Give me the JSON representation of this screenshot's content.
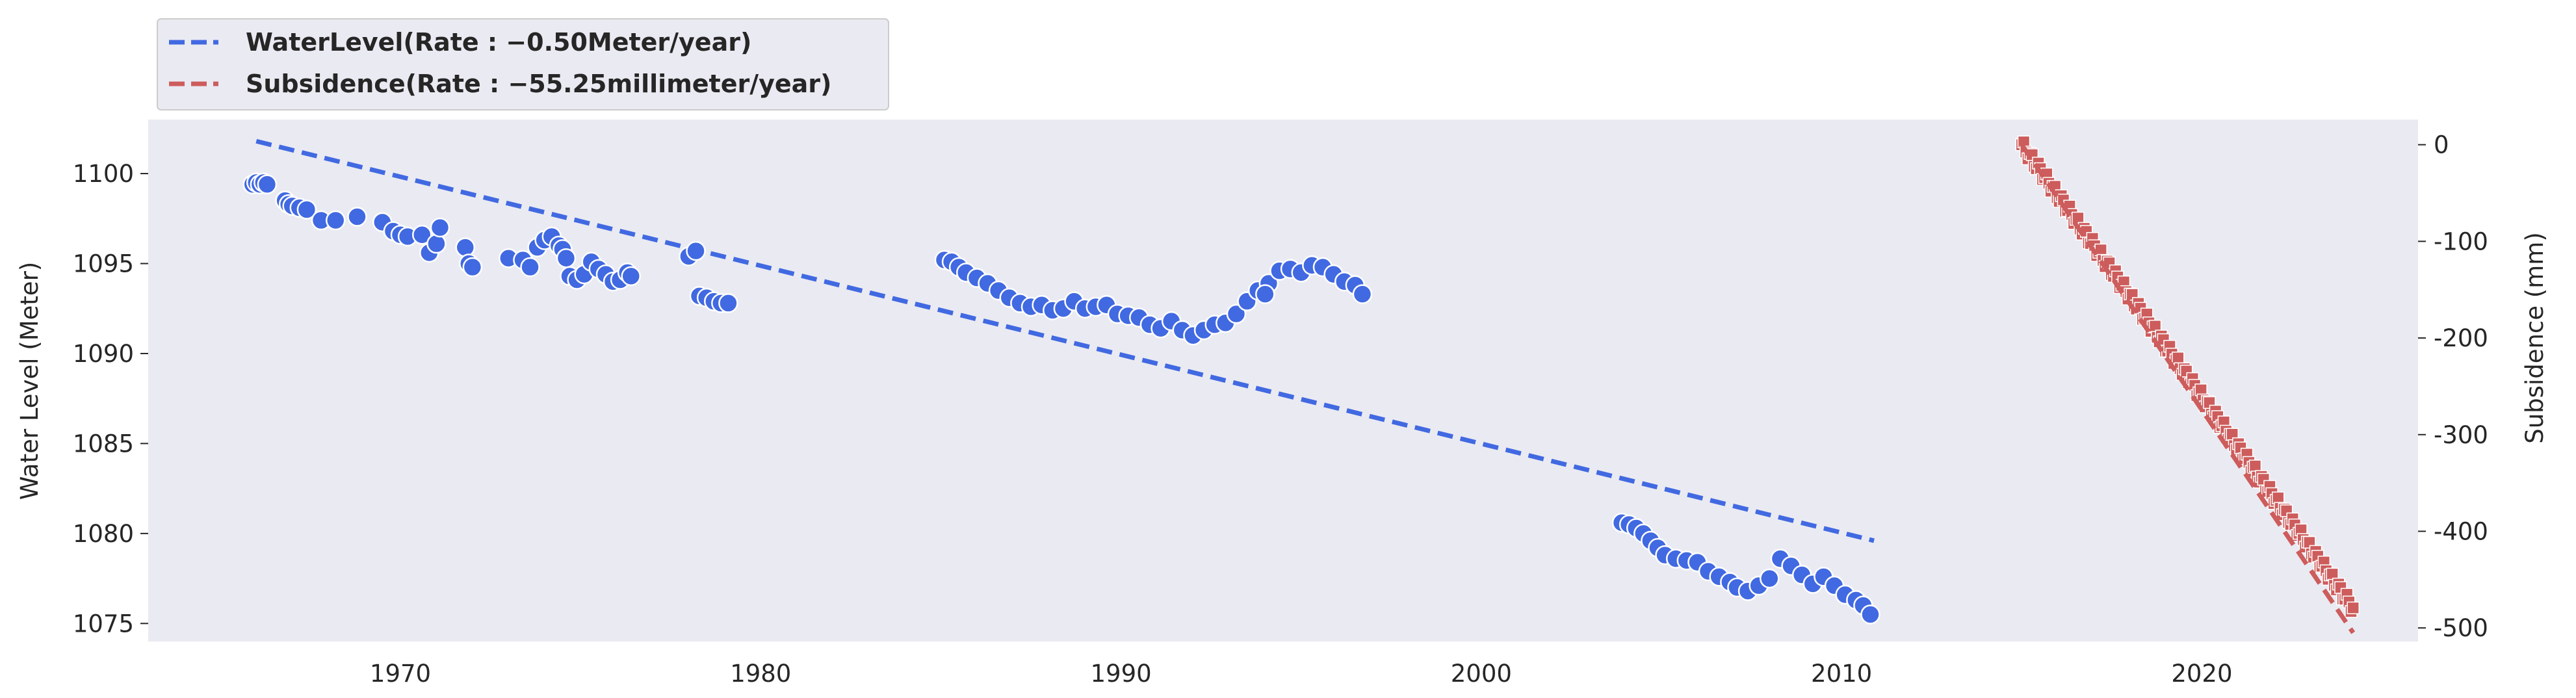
{
  "chart_data": {
    "type": "scatter",
    "title": "",
    "xlabel": "",
    "ylabel": "Water Level (Meter)",
    "y2label": "Subsidence (mm)",
    "xlim": [
      1963,
      2026
    ],
    "ylim": [
      1074,
      1103
    ],
    "y2lim": [
      -514,
      26
    ],
    "xticks": [
      1970,
      1980,
      1990,
      2000,
      2010,
      2020
    ],
    "yticks": [
      1075,
      1080,
      1085,
      1090,
      1095,
      1100
    ],
    "y2ticks": [
      -500,
      -400,
      -300,
      -200,
      -100,
      0
    ],
    "grid": false,
    "legend_position": "top-left, outside above plot",
    "background": "#eaeaf2",
    "series": [
      {
        "name": "WaterLevel(Rate : −0.50Meter/year)",
        "axis": "left",
        "color": "#4169e1",
        "marker": "circle",
        "points": [
          [
            1965.9,
            1099.4
          ],
          [
            1966.0,
            1099.5
          ],
          [
            1966.1,
            1099.4
          ],
          [
            1966.2,
            1099.5
          ],
          [
            1966.3,
            1099.4
          ],
          [
            1966.8,
            1098.5
          ],
          [
            1966.9,
            1098.3
          ],
          [
            1967.0,
            1098.2
          ],
          [
            1967.2,
            1098.1
          ],
          [
            1967.4,
            1098.0
          ],
          [
            1967.8,
            1097.4
          ],
          [
            1968.2,
            1097.4
          ],
          [
            1968.8,
            1097.6
          ],
          [
            1969.5,
            1097.3
          ],
          [
            1969.8,
            1096.8
          ],
          [
            1970.0,
            1096.6
          ],
          [
            1970.2,
            1096.5
          ],
          [
            1970.6,
            1096.6
          ],
          [
            1970.8,
            1095.6
          ],
          [
            1971.0,
            1096.1
          ],
          [
            1971.1,
            1097.0
          ],
          [
            1971.8,
            1095.9
          ],
          [
            1971.9,
            1095.0
          ],
          [
            1972.0,
            1094.8
          ],
          [
            1973.0,
            1095.3
          ],
          [
            1973.4,
            1095.2
          ],
          [
            1973.6,
            1094.8
          ],
          [
            1973.8,
            1095.9
          ],
          [
            1974.0,
            1096.3
          ],
          [
            1974.2,
            1096.5
          ],
          [
            1974.4,
            1096.0
          ],
          [
            1974.5,
            1095.8
          ],
          [
            1974.6,
            1095.3
          ],
          [
            1974.7,
            1094.3
          ],
          [
            1974.9,
            1094.1
          ],
          [
            1975.1,
            1094.4
          ],
          [
            1975.3,
            1095.1
          ],
          [
            1975.5,
            1094.7
          ],
          [
            1975.7,
            1094.4
          ],
          [
            1975.9,
            1094.0
          ],
          [
            1976.1,
            1094.1
          ],
          [
            1976.3,
            1094.5
          ],
          [
            1976.4,
            1094.3
          ],
          [
            1978.0,
            1095.4
          ],
          [
            1978.2,
            1095.7
          ],
          [
            1978.3,
            1093.2
          ],
          [
            1978.5,
            1093.1
          ],
          [
            1978.7,
            1092.9
          ],
          [
            1978.9,
            1092.8
          ],
          [
            1979.1,
            1092.8
          ],
          [
            1985.1,
            1095.2
          ],
          [
            1985.3,
            1095.1
          ],
          [
            1985.5,
            1094.8
          ],
          [
            1985.7,
            1094.5
          ],
          [
            1986.0,
            1094.2
          ],
          [
            1986.3,
            1093.9
          ],
          [
            1986.6,
            1093.5
          ],
          [
            1986.9,
            1093.1
          ],
          [
            1987.2,
            1092.8
          ],
          [
            1987.5,
            1092.6
          ],
          [
            1987.8,
            1092.7
          ],
          [
            1988.1,
            1092.4
          ],
          [
            1988.4,
            1092.5
          ],
          [
            1988.7,
            1092.9
          ],
          [
            1989.0,
            1092.5
          ],
          [
            1989.3,
            1092.6
          ],
          [
            1989.6,
            1092.7
          ],
          [
            1989.9,
            1092.2
          ],
          [
            1990.2,
            1092.1
          ],
          [
            1990.5,
            1092.0
          ],
          [
            1990.8,
            1091.6
          ],
          [
            1991.1,
            1091.4
          ],
          [
            1991.4,
            1091.8
          ],
          [
            1991.7,
            1091.3
          ],
          [
            1992.0,
            1091.0
          ],
          [
            1992.3,
            1091.3
          ],
          [
            1992.6,
            1091.6
          ],
          [
            1992.9,
            1091.7
          ],
          [
            1993.2,
            1092.2
          ],
          [
            1993.5,
            1092.9
          ],
          [
            1993.8,
            1093.5
          ],
          [
            1994.1,
            1093.9
          ],
          [
            1994.4,
            1094.6
          ],
          [
            1994.7,
            1094.7
          ],
          [
            1995.0,
            1094.5
          ],
          [
            1995.3,
            1094.9
          ],
          [
            1995.6,
            1094.8
          ],
          [
            1995.9,
            1094.4
          ],
          [
            1996.2,
            1094.0
          ],
          [
            1996.5,
            1093.8
          ],
          [
            1996.7,
            1093.3
          ],
          [
            1994.0,
            1093.3
          ],
          [
            2003.9,
            1080.6
          ],
          [
            2004.1,
            1080.5
          ],
          [
            2004.3,
            1080.3
          ],
          [
            2004.5,
            1080.0
          ],
          [
            2004.7,
            1079.6
          ],
          [
            2004.9,
            1079.2
          ],
          [
            2005.1,
            1078.8
          ],
          [
            2005.4,
            1078.6
          ],
          [
            2005.7,
            1078.5
          ],
          [
            2006.0,
            1078.4
          ],
          [
            2006.3,
            1077.9
          ],
          [
            2006.6,
            1077.6
          ],
          [
            2006.9,
            1077.3
          ],
          [
            2007.1,
            1077.0
          ],
          [
            2007.4,
            1076.8
          ],
          [
            2007.7,
            1077.1
          ],
          [
            2008.0,
            1077.5
          ],
          [
            2008.3,
            1078.6
          ],
          [
            2008.6,
            1078.2
          ],
          [
            2008.9,
            1077.7
          ],
          [
            2009.2,
            1077.2
          ],
          [
            2009.5,
            1077.6
          ],
          [
            2009.8,
            1077.1
          ],
          [
            2010.1,
            1076.6
          ],
          [
            2010.4,
            1076.3
          ],
          [
            2010.6,
            1076.0
          ],
          [
            2010.8,
            1075.5
          ]
        ]
      },
      {
        "name": "Subsidence(Rate : −55.25millimeter/year)",
        "axis": "right",
        "color": "#cd5c5c",
        "marker": "square",
        "points_range": {
          "x_start": 2015.0,
          "x_end": 2024.2,
          "y_start": 0,
          "y_end": -480,
          "count": 160
        }
      }
    ],
    "trend_lines": [
      {
        "series": "WaterLevel",
        "axis": "left",
        "color": "#4169e1",
        "style": "dashed",
        "x": [
          1966.0,
          2010.9
        ],
        "y": [
          1101.8,
          1079.6
        ]
      },
      {
        "series": "Subsidence",
        "axis": "right",
        "color": "#cd5c5c",
        "style": "dashed",
        "x": [
          2015.0,
          2024.2
        ],
        "y": [
          0,
          -505
        ]
      }
    ]
  }
}
